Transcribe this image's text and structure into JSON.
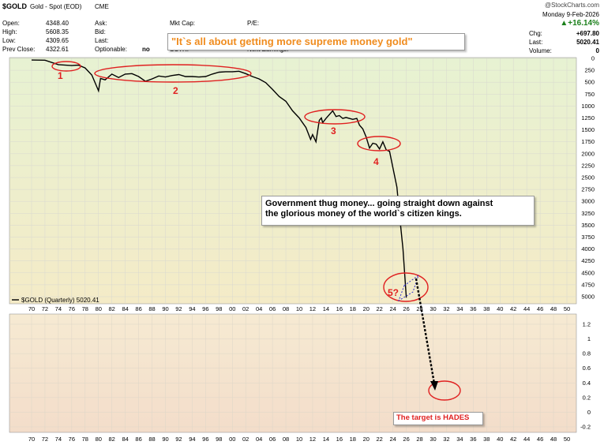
{
  "header": {
    "symbol": "$GOLD",
    "subtitle": "Gold - Spot (EOD)",
    "exchange": "CME",
    "watermark": "@StockCharts.com",
    "date": "Monday  9-Feb-2026",
    "open_label": "Open:",
    "open": "4348.40",
    "high_label": "High:",
    "high": "5608.35",
    "low_label": "Low:",
    "low": "4309.65",
    "prev_label": "Prev Close:",
    "prev": "4322.61",
    "ask_label": "Ask:",
    "bid_label": "Bid:",
    "last_label": "Last:",
    "optionable_label": "Optionable:",
    "optionable": "no",
    "mktcap_label": "Mkt Cap:",
    "pe_label": "P/E:",
    "sctr_label": "SCTR:",
    "next_earnings_label": "Next Earnings:",
    "change_pct": "+16.14%",
    "chg_label": "Chg:",
    "chg": "+697.80",
    "last_label2": "Last:",
    "last": "5020.41",
    "volume_label": "Volume:",
    "volume": "0"
  },
  "annotations": {
    "headline": "\"It`s all about getting more supreme money gold\"",
    "callout_text_1": "Government thug money... going straight down against",
    "callout_text_2": "the glorious money of the world`s citizen kings.",
    "target_text": "The target is HADES",
    "labels": [
      "1",
      "2",
      "3",
      "4",
      "5?"
    ]
  },
  "legend": {
    "series_label": "$GOLD (Quarterly) 5020.41"
  },
  "colors": {
    "annotation_red": "#e02020",
    "headline_orange": "#f08c1e",
    "line": "#000000"
  },
  "chart_data": [
    {
      "type": "line",
      "y_scale": "inverted",
      "x_ticks": [
        "70",
        "72",
        "74",
        "76",
        "78",
        "80",
        "82",
        "84",
        "86",
        "88",
        "90",
        "92",
        "94",
        "96",
        "98",
        "00",
        "02",
        "04",
        "06",
        "08",
        "10",
        "12",
        "14",
        "16",
        "18",
        "20",
        "22",
        "24",
        "26",
        "28",
        "30",
        "32",
        "34",
        "36",
        "38",
        "40",
        "42",
        "44",
        "46",
        "48",
        "50"
      ],
      "y_ticks": [
        "0",
        "250",
        "500",
        "750",
        "1000",
        "1250",
        "1500",
        "1750",
        "2000",
        "2250",
        "2500",
        "2750",
        "3000",
        "3250",
        "3500",
        "3750",
        "4000",
        "4250",
        "4500",
        "4750",
        "5000"
      ],
      "ylim": [
        5000,
        0
      ],
      "series": [
        {
          "name": "$GOLD (Quarterly)",
          "x": [
            1970,
            1972,
            1974,
            1976,
            1977,
            1978,
            1979,
            1980,
            1980.3,
            1981,
            1982,
            1983,
            1984,
            1985,
            1986,
            1987,
            1988,
            1989,
            1990,
            1991,
            1992,
            1993,
            1994,
            1995,
            1996,
            1997,
            1998,
            1999,
            2000,
            2001,
            2002,
            2003,
            2004,
            2005,
            2006,
            2007,
            2008,
            2009,
            2010,
            2011,
            2011.7,
            2012,
            2012.5,
            2013,
            2013.3,
            2013.5,
            2014,
            2015,
            2015.5,
            2016,
            2016.5,
            2017,
            2018,
            2018.6,
            2019,
            2019.5,
            2020,
            2020.5,
            2021,
            2021.5,
            2022,
            2022.5,
            2023,
            2023.5,
            2024,
            2024.6,
            2025,
            2025.5,
            2026
          ],
          "values": [
            35,
            38,
            130,
            150,
            140,
            200,
            350,
            680,
            420,
            450,
            330,
            400,
            330,
            320,
            380,
            480,
            430,
            370,
            390,
            360,
            340,
            380,
            380,
            390,
            380,
            330,
            290,
            280,
            280,
            270,
            320,
            380,
            430,
            510,
            650,
            800,
            900,
            1100,
            1250,
            1450,
            1700,
            1600,
            1750,
            1300,
            1250,
            1350,
            1260,
            1100,
            1220,
            1200,
            1260,
            1240,
            1280,
            1260,
            1400,
            1480,
            1650,
            1880,
            1780,
            1800,
            1900,
            1750,
            1920,
            1950,
            2300,
            2700,
            3300,
            4000,
            5020
          ]
        }
      ],
      "legend": "bottom-left"
    },
    {
      "type": "line",
      "x_ticks": [
        "70",
        "72",
        "74",
        "76",
        "78",
        "80",
        "82",
        "84",
        "86",
        "88",
        "90",
        "92",
        "94",
        "96",
        "98",
        "00",
        "02",
        "04",
        "06",
        "08",
        "10",
        "12",
        "14",
        "16",
        "18",
        "20",
        "22",
        "24",
        "26",
        "28",
        "30",
        "32",
        "34",
        "36",
        "38",
        "40",
        "42",
        "44",
        "46",
        "48",
        "50"
      ],
      "y_ticks": [
        "1.2",
        "1",
        "0.8",
        "0.6",
        "0.4",
        "0.2",
        "0",
        "-0.2"
      ],
      "ylim": [
        -0.25,
        1.3
      ],
      "series": []
    }
  ]
}
